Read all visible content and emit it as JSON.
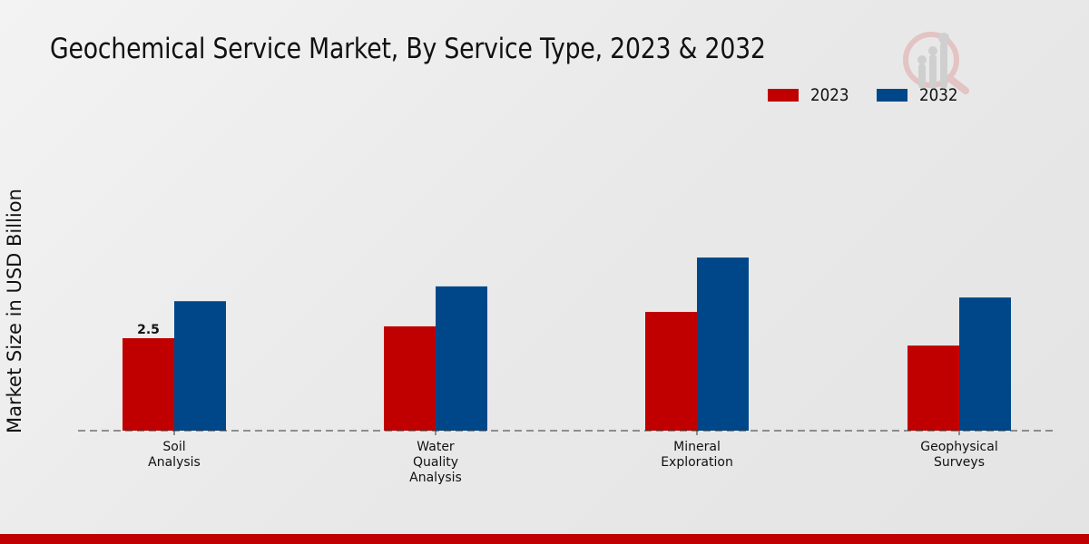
{
  "page": {
    "title": "Geochemical Service Market, By Service Type, 2023 & 2032",
    "footer_color": "#c00000"
  },
  "legend": [
    {
      "label": "2023",
      "color": "#c00000"
    },
    {
      "label": "2032",
      "color": "#00478a"
    }
  ],
  "logo": {
    "icon": "market-research-logo-icon"
  },
  "chart_data": {
    "type": "bar",
    "title": "Geochemical Service Market, By Service Type, 2023 & 2032",
    "xlabel": "",
    "ylabel": "Market Size in USD Billion",
    "categories": [
      [
        "Soil",
        "Analysis"
      ],
      [
        "Water",
        "Quality",
        "Analysis"
      ],
      [
        "Mineral",
        "Exploration"
      ],
      [
        "Geophysical",
        "Surveys"
      ]
    ],
    "category_names": [
      "Soil Analysis",
      "Water Quality Analysis",
      "Mineral Exploration",
      "Geophysical Surveys"
    ],
    "series": [
      {
        "name": "2023",
        "color": "#c00000",
        "values": [
          2.5,
          2.82,
          3.21,
          2.3
        ]
      },
      {
        "name": "2032",
        "color": "#00478a",
        "values": [
          3.5,
          3.9,
          4.68,
          3.6
        ]
      }
    ],
    "data_labels": [
      {
        "series": 0,
        "index": 0,
        "text": "2.5"
      }
    ],
    "ylim": [
      0,
      7.5
    ],
    "grid": false,
    "legend_position": "top-right"
  }
}
